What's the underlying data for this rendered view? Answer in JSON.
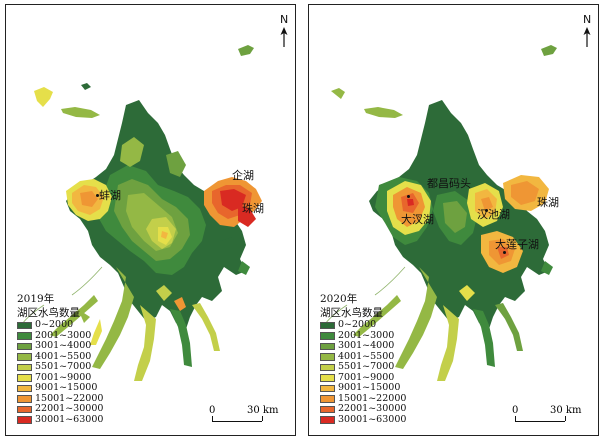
{
  "north_label": "N",
  "legend": {
    "classes": [
      {
        "label": "0~2000",
        "color": "#2d6b38"
      },
      {
        "label": "2001~3000",
        "color": "#3f8a3d"
      },
      {
        "label": "3001~4000",
        "color": "#6ea140"
      },
      {
        "label": "4001~5500",
        "color": "#94b845"
      },
      {
        "label": "5501~7000",
        "color": "#c3cf4a"
      },
      {
        "label": "7001~9000",
        "color": "#e5df4a"
      },
      {
        "label": "9001~15000",
        "color": "#f2b740"
      },
      {
        "label": "15001~22000",
        "color": "#ef9634"
      },
      {
        "label": "22001~30000",
        "color": "#e8662c"
      },
      {
        "label": "30001~63000",
        "color": "#d92a22"
      }
    ]
  },
  "scale_bar": {
    "start": "0",
    "end": "30 km"
  },
  "panels": [
    {
      "id": "2019",
      "year_label": "2019年",
      "legend_title": "湖区水鸟数量",
      "lake_labels": [
        "蚌湖",
        "企湖",
        "珠湖"
      ]
    },
    {
      "id": "2020",
      "year_label": "2020年",
      "legend_title": "湖区水鸟数量",
      "lake_labels": [
        "都昌码头",
        "大汊湖",
        "汉池湖",
        "珠湖",
        "大莲子湖"
      ]
    }
  ]
}
